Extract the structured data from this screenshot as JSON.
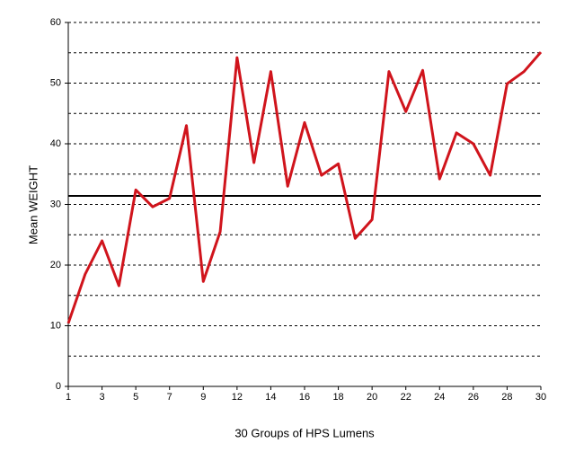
{
  "chart_data": {
    "type": "line",
    "x_label": "30 Groups of HPS Lumens",
    "y_label": "Mean WEIGHT",
    "categories": [
      "1",
      null,
      "3",
      null,
      "5",
      null,
      "7",
      null,
      "9",
      null,
      "12",
      null,
      "14",
      null,
      "16",
      null,
      "18",
      null,
      "20",
      null,
      "22",
      null,
      "24",
      null,
      "26",
      null,
      "28",
      null,
      "30"
    ],
    "series": [
      {
        "color": "#d0141c",
        "values": [
          10.4,
          18.5,
          24,
          16.6,
          32.4,
          29.6,
          31,
          43,
          17.3,
          25.5,
          54.2,
          36.9,
          51.9,
          33,
          43.5,
          34.8,
          36.7,
          24.4,
          27.5,
          51.9,
          45.3,
          52.1,
          34.2,
          41.8,
          40,
          34.8,
          49.9,
          51.9,
          55.1
        ]
      }
    ],
    "reference_line": 31.4,
    "ylim": [
      0,
      60
    ],
    "yticks": [
      0,
      10,
      20,
      30,
      40,
      50,
      60
    ],
    "minor_yticks": [
      5,
      15,
      25,
      35,
      45,
      55
    ],
    "grid": true
  }
}
